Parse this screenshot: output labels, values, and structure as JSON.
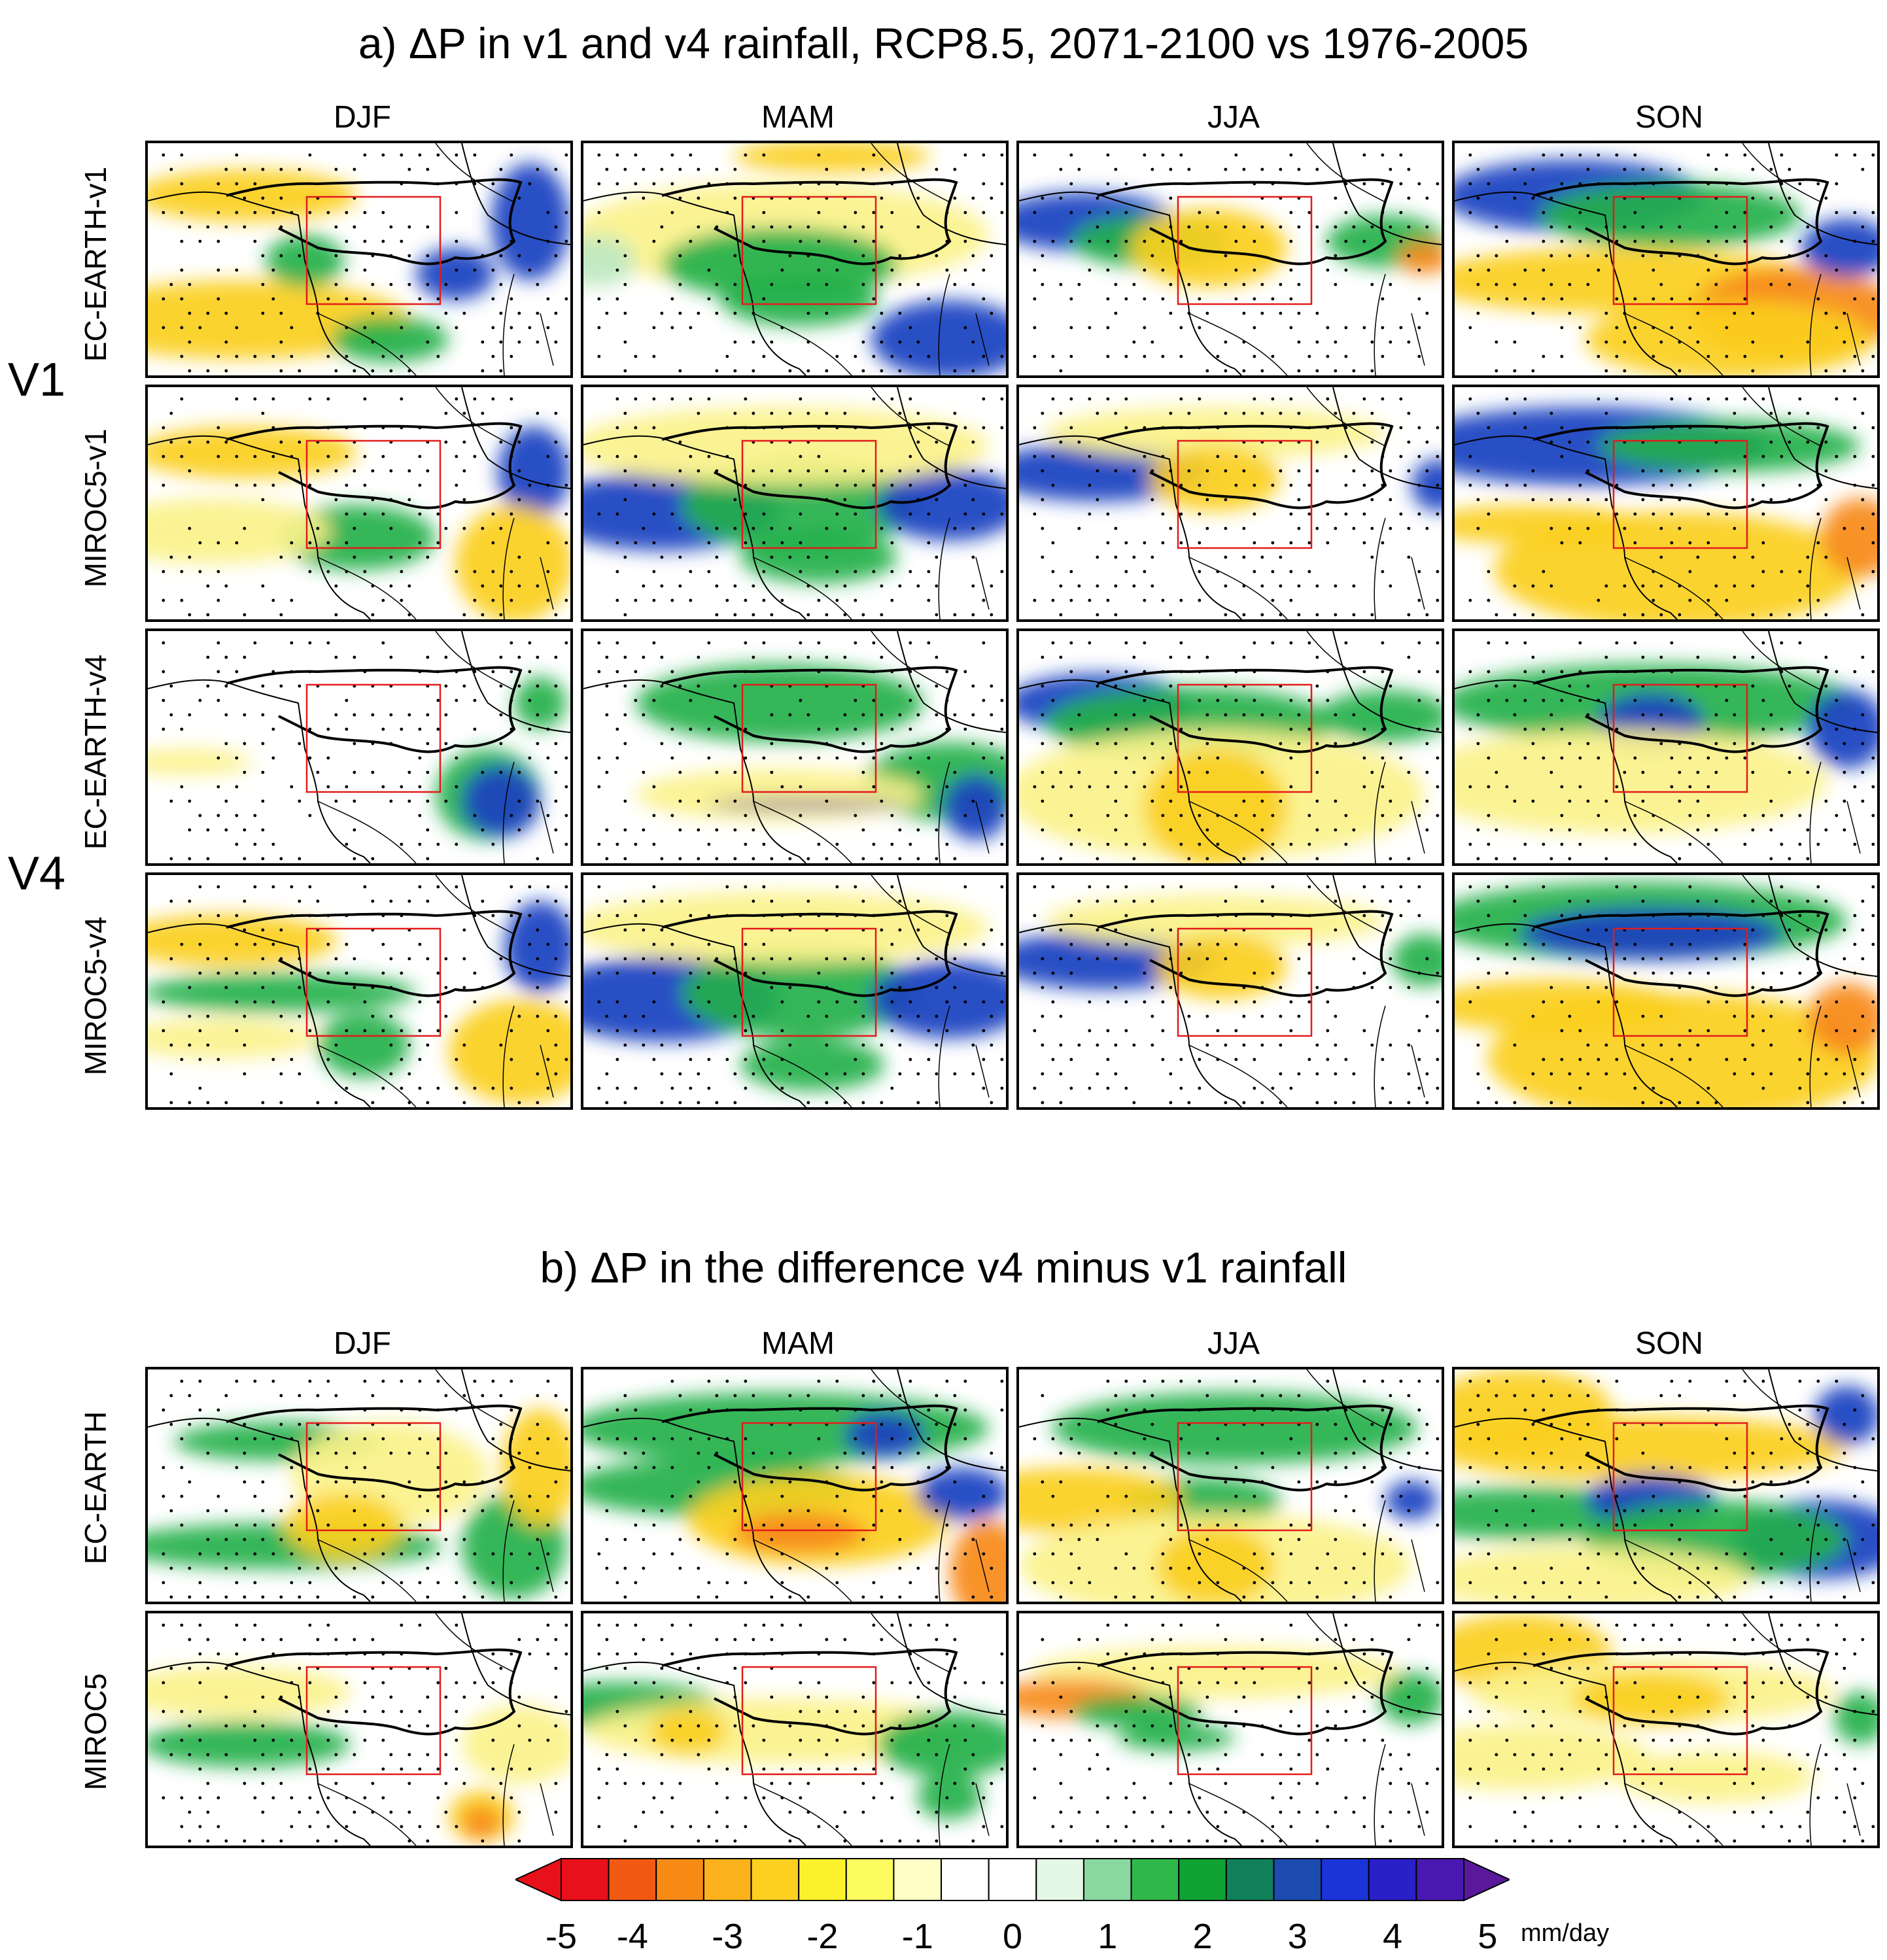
{
  "part_a": {
    "title": "a) ΔP in v1 and v4 rainfall, RCP8.5, 2071-2100 vs 1976-2005",
    "seasons": [
      "DJF",
      "MAM",
      "JJA",
      "SON"
    ],
    "group_labels": [
      "V1",
      "V4"
    ],
    "row_labels": [
      "EC-EARTH-v1",
      "MIROC5-v1",
      "EC-EARTH-v4",
      "MIROC5-v4"
    ]
  },
  "part_b": {
    "title": "b) ΔP in the difference v4 minus v1 rainfall",
    "seasons": [
      "DJF",
      "MAM",
      "JJA",
      "SON"
    ],
    "row_labels": [
      "EC-EARTH",
      "MIROC5"
    ]
  },
  "colorbar": {
    "ticks": [
      "-5",
      "-4",
      "-3",
      "-2",
      "-1",
      "0",
      "1",
      "2",
      "3",
      "4",
      "5"
    ],
    "unit": "mm/day",
    "colors": [
      "#e8101a",
      "#f25a14",
      "#f78b16",
      "#fbb21c",
      "#fdd020",
      "#fcf22c",
      "#fcfc60",
      "#fefec6",
      "#ffffff",
      "#ffffff",
      "#e4f6e4",
      "#88d8a0",
      "#2fb84a",
      "#10a232",
      "#10805a",
      "#1c4bb0",
      "#1a34d8",
      "#2a20c8",
      "#4a18b0"
    ],
    "arrow_left": "#e8101a",
    "arrow_right": "#5a189a"
  },
  "map_colors": {
    "dry_strong": "#f7891a",
    "dry": "#fbcf1e",
    "dry_light": "#fbf28a",
    "wet_light": "#bfe8c0",
    "wet": "#22b04a",
    "wet_strong": "#1a40c0",
    "wet_extreme": "#4a1aa8",
    "box": "#e21b1b",
    "coast": "#000000"
  }
}
